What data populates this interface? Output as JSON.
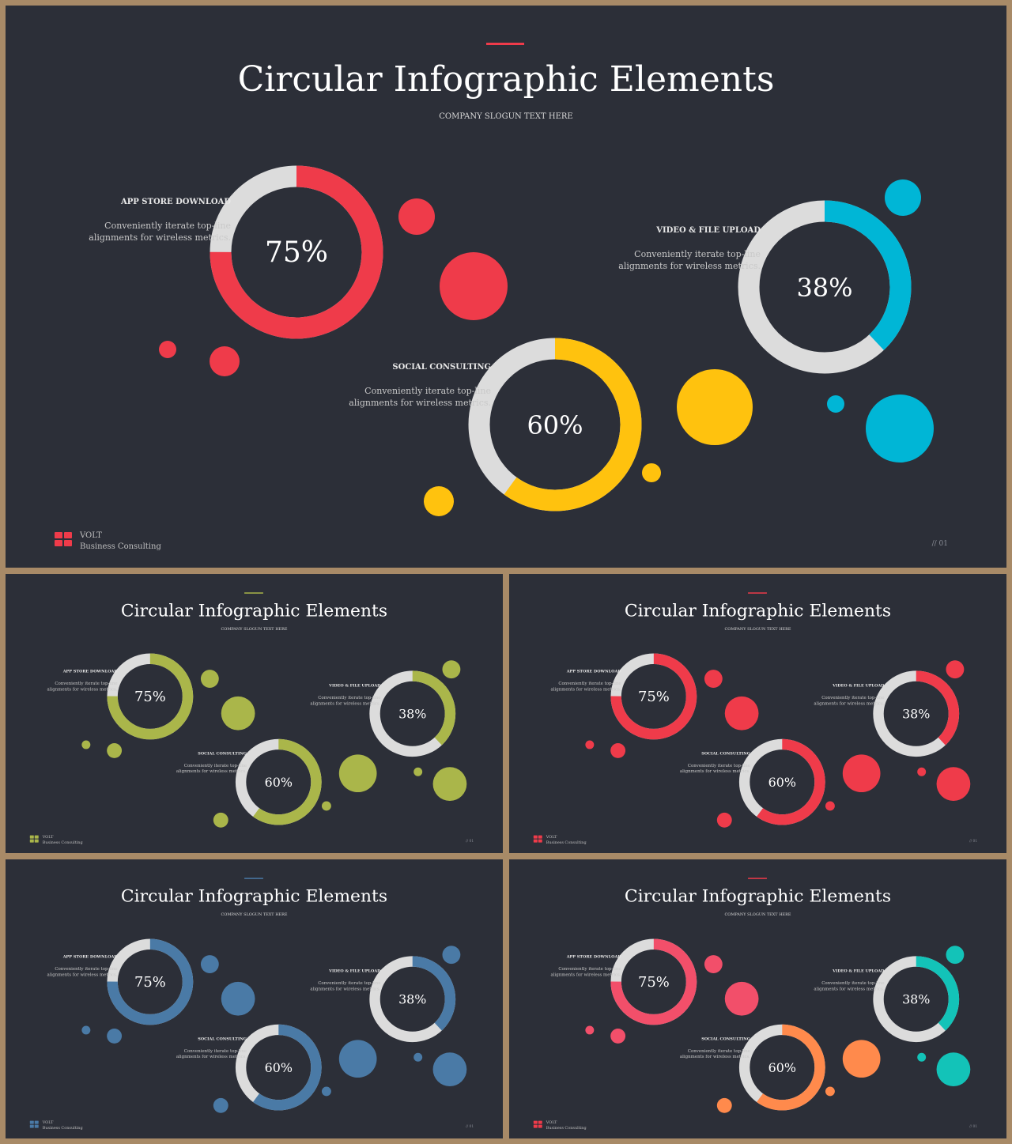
{
  "content": {
    "title": "Circular Infographic Elements",
    "slogan": "COMPANY SLOGUN TEXT HERE",
    "brand_name": "VOLT",
    "brand_tagline": "Business  Consulting",
    "page_number": "// 01",
    "items": [
      {
        "label": "APP STORE DOWNLOAD",
        "desc_line1": "Conveniently iterate top-line",
        "desc_line2": "alignments for wireless metrics.",
        "value": 0.75,
        "value_text": "75%"
      },
      {
        "label": "SOCIAL CONSULTING",
        "desc_line1": "Conveniently iterate top-line",
        "desc_line2": "alignments for wireless metrics.",
        "value": 0.6,
        "value_text": "60%"
      },
      {
        "label": "VIDEO & FILE UPLOAD",
        "desc_line1": "Conveniently iterate top-line",
        "desc_line2": "alignments for wireless metrics.",
        "value": 0.38,
        "value_text": "38%"
      }
    ]
  },
  "track_color": "#dcdcdc",
  "variants": [
    {
      "accent": "#ef3b4a",
      "colors": [
        "#ef3b4a",
        "#ffc20e",
        "#00b6d6"
      ]
    },
    {
      "accent": "#aab64a",
      "colors": [
        "#aab64a",
        "#aab64a",
        "#aab64a"
      ]
    },
    {
      "accent": "#ef3b4a",
      "colors": [
        "#ef3b4a",
        "#ef3b4a",
        "#ef3b4a"
      ]
    },
    {
      "accent": "#4a7aa6",
      "colors": [
        "#4a7aa6",
        "#4a7aa6",
        "#4a7aa6"
      ]
    },
    {
      "accent": "#ef3b4a",
      "colors": [
        "#f24f6a",
        "#ff8a4c",
        "#13c3b8"
      ]
    }
  ]
}
